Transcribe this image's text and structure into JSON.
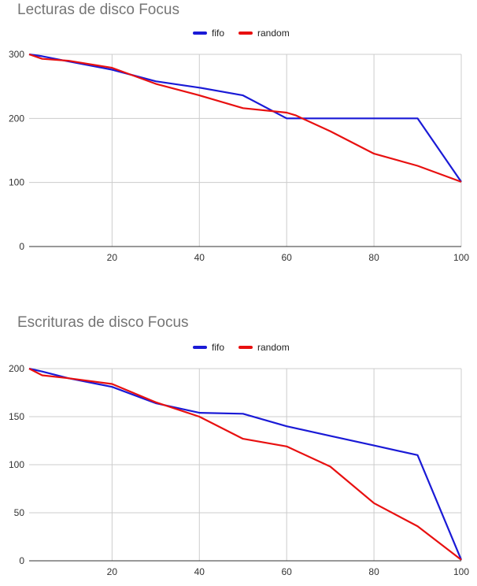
{
  "colors": {
    "fifo": "#1a1ad6",
    "random": "#e81010",
    "grid": "#cccccc",
    "axis": "#333333"
  },
  "chart_data": [
    {
      "type": "line",
      "title": "Lecturas de disco Focus",
      "xlabel": "",
      "ylabel": "",
      "xlim": [
        1,
        100
      ],
      "ylim": [
        0,
        300
      ],
      "xticks": [
        20,
        40,
        60,
        80,
        100
      ],
      "yticks": [
        0,
        100,
        200,
        300
      ],
      "legend_position": "top",
      "grid": true,
      "series": [
        {
          "name": "fifo",
          "x": [
            1,
            4,
            10,
            20,
            30,
            40,
            50,
            60,
            70,
            80,
            90,
            100
          ],
          "y": [
            300,
            297,
            289,
            276,
            258,
            248,
            236,
            200,
            200,
            200,
            200,
            101
          ]
        },
        {
          "name": "random",
          "x": [
            1,
            4,
            10,
            20,
            30,
            40,
            50,
            60,
            62,
            70,
            80,
            90,
            100
          ],
          "y": [
            300,
            293,
            290,
            279,
            254,
            236,
            216,
            209,
            205,
            180,
            145,
            126,
            101
          ]
        }
      ]
    },
    {
      "type": "line",
      "title": "Escrituras de disco Focus",
      "xlabel": "",
      "ylabel": "",
      "xlim": [
        1,
        100
      ],
      "ylim": [
        0,
        200
      ],
      "xticks": [
        20,
        40,
        60,
        80,
        100
      ],
      "yticks": [
        0,
        50,
        100,
        150,
        200
      ],
      "legend_position": "top",
      "grid": true,
      "series": [
        {
          "name": "fifo",
          "x": [
            1,
            4,
            10,
            20,
            30,
            40,
            50,
            60,
            70,
            80,
            90,
            100
          ],
          "y": [
            200,
            197,
            190,
            181,
            164,
            154,
            153,
            140,
            130,
            120,
            110,
            1
          ]
        },
        {
          "name": "random",
          "x": [
            1,
            4,
            10,
            20,
            30,
            40,
            50,
            60,
            70,
            80,
            90,
            100
          ],
          "y": [
            200,
            193,
            190,
            184,
            165,
            150,
            127,
            119,
            98,
            60,
            36,
            1
          ]
        }
      ]
    }
  ]
}
